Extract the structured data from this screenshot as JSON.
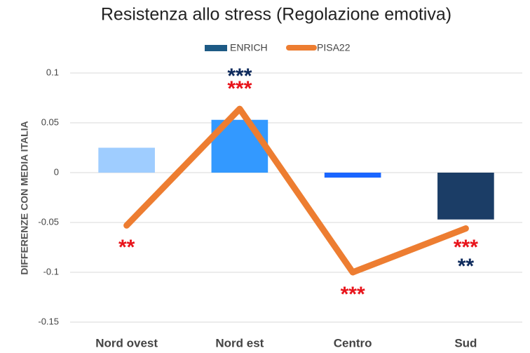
{
  "chart_data": {
    "type": "bar_line",
    "title": "Resistenza allo stress (Regolazione emotiva)",
    "y_label": "DIFFERENZE CON MEDIA ITALIA",
    "categories": [
      "Nord ovest",
      "Nord est",
      "Centro",
      "Sud"
    ],
    "series": [
      {
        "name": "ENRICH",
        "type": "bar",
        "color": "#1d5a85",
        "colors": [
          "#9fcdff",
          "#3399ff",
          "#1a66ff",
          "#1b3d66"
        ],
        "values": [
          0.025,
          0.053,
          -0.005,
          -0.047
        ]
      },
      {
        "name": "PISA22",
        "type": "line",
        "color": "#ed7d31",
        "values": [
          -0.053,
          0.064,
          -0.1,
          -0.056
        ]
      }
    ],
    "annotations": [
      {
        "text": "**",
        "color": "#e8141b",
        "category": 0
      },
      {
        "text": "***",
        "color": "#0d2a5c",
        "category": 1
      },
      {
        "text": "***",
        "color": "#e8141b",
        "category": 1
      },
      {
        "text": "***",
        "color": "#e8141b",
        "category": 2
      },
      {
        "text": "***",
        "color": "#e8141b",
        "category": 3
      },
      {
        "text": "**",
        "color": "#0d2a5c",
        "category": 3
      }
    ],
    "ylim": [
      -0.15,
      0.1
    ],
    "yticks": [
      -0.15,
      -0.1,
      -0.05,
      0,
      0.05,
      0.1
    ],
    "grid": true,
    "legend": "top"
  }
}
